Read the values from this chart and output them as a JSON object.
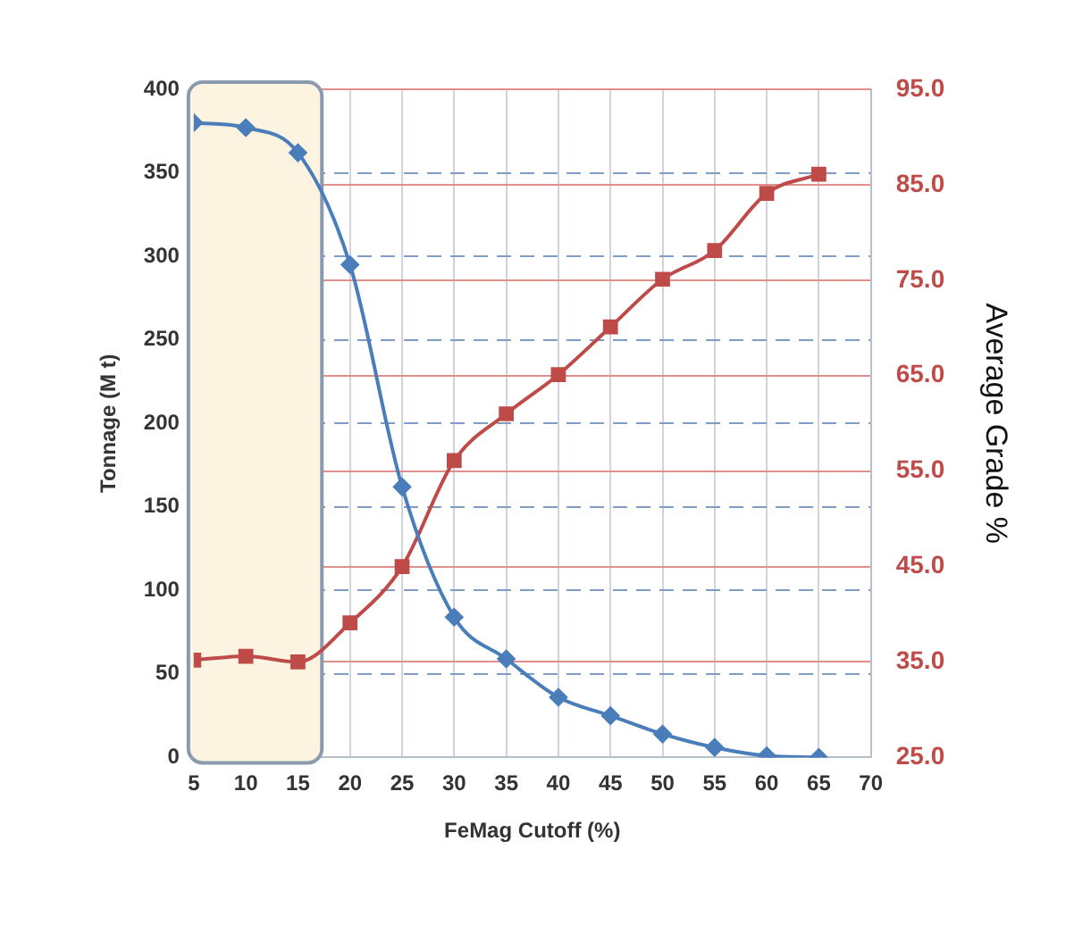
{
  "chart_data": {
    "type": "line",
    "xlabel": "FeMag Cutoff (%)",
    "ylabel": "Tonnage (M t)",
    "y2label": "Average Grade %",
    "x": [
      5,
      10,
      15,
      20,
      25,
      30,
      35,
      40,
      45,
      50,
      55,
      60,
      65
    ],
    "series": [
      {
        "color": "#4a7ebb",
        "marker": "diamond",
        "values": [
          380,
          377,
          362,
          295,
          162,
          84,
          59,
          36,
          25,
          14,
          6,
          1,
          0
        ]
      },
      {
        "color": "#be4b48",
        "marker": "square",
        "axis": "y2",
        "values": [
          35.2,
          35.6,
          35.0,
          39.1,
          45.0,
          56.1,
          61.0,
          65.1,
          70.1,
          75.1,
          78.1,
          84.1,
          86.1
        ]
      }
    ],
    "xlim": [
      5,
      70
    ],
    "xticks": [
      5,
      10,
      15,
      20,
      25,
      30,
      35,
      40,
      45,
      50,
      55,
      60,
      65,
      70
    ],
    "ylim": [
      0,
      400
    ],
    "yticks": [
      0,
      50,
      100,
      150,
      200,
      250,
      300,
      350,
      400
    ],
    "y2lim": [
      25,
      95
    ],
    "y2ticks": [
      {
        "value": 25,
        "label": "25.0"
      },
      {
        "value": 35,
        "label": "35.0"
      },
      {
        "value": 45,
        "label": "45.0"
      },
      {
        "value": 55,
        "label": "55.0"
      },
      {
        "value": 65,
        "label": "65.0"
      },
      {
        "value": 75,
        "label": "75.0"
      },
      {
        "value": 85,
        "label": "85.0"
      },
      {
        "value": 95,
        "label": "95.0"
      }
    ],
    "bands": [
      {
        "axis": "x",
        "from": 5,
        "to": 17.3,
        "color": "#fdf3e1"
      }
    ],
    "grid": true,
    "legend": false
  }
}
